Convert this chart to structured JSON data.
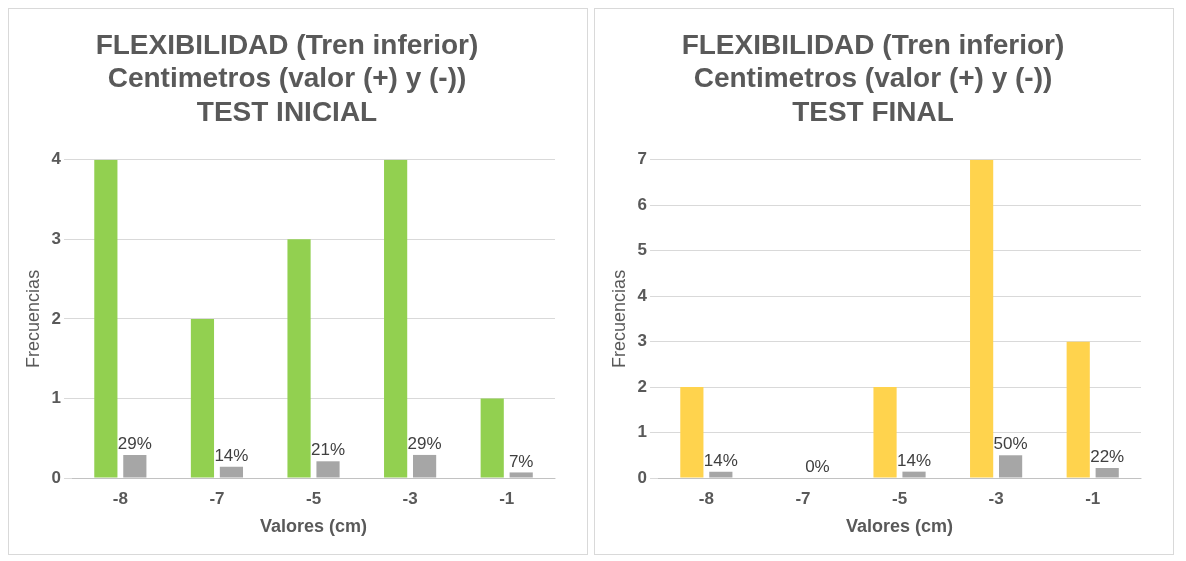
{
  "chart_data": [
    {
      "type": "bar",
      "title": "FLEXIBILIDAD (Tren inferior)\nCentimetros (valor (+) y (-))\nTEST INICIAL",
      "xlabel": "Valores (cm)",
      "ylabel": "Frecuencias",
      "categories": [
        "-8",
        "-7",
        "-5",
        "-3",
        "-1"
      ],
      "ylim": [
        0,
        4
      ],
      "yticks": [
        0,
        1,
        2,
        3,
        4
      ],
      "grid": "y",
      "legend": false,
      "series": [
        {
          "color": "#92d050",
          "values": [
            4,
            2,
            3,
            4,
            1
          ]
        },
        {
          "color": "#a6a6a6",
          "values": [
            0.29,
            0.14,
            0.21,
            0.29,
            0.07
          ],
          "value_labels": [
            "29%",
            "14%",
            "21%",
            "29%",
            "7%"
          ]
        }
      ]
    },
    {
      "type": "bar",
      "title": "FLEXIBILIDAD (Tren inferior)\nCentimetros (valor (+) y (-))\nTEST FINAL",
      "xlabel": "Valores (cm)",
      "ylabel": "Frecuencias",
      "categories": [
        "-8",
        "-7",
        "-5",
        "-3",
        "-1"
      ],
      "ylim": [
        0,
        7
      ],
      "yticks": [
        0,
        1,
        2,
        3,
        4,
        5,
        6,
        7
      ],
      "grid": "y",
      "legend": false,
      "series": [
        {
          "color": "#ffd34d",
          "values": [
            2,
            0,
            2,
            7,
            3
          ]
        },
        {
          "color": "#a6a6a6",
          "values": [
            0.14,
            0,
            0.14,
            0.5,
            0.22
          ],
          "value_labels": [
            "14%",
            "0%",
            "14%",
            "50%",
            "22%"
          ]
        }
      ]
    }
  ]
}
